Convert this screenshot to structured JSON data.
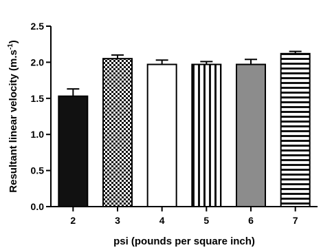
{
  "chart_data": {
    "type": "bar",
    "categories": [
      "2",
      "3",
      "4",
      "5",
      "6",
      "7"
    ],
    "values": [
      1.53,
      2.05,
      1.97,
      1.97,
      1.97,
      2.12
    ],
    "errors": [
      0.1,
      0.05,
      0.06,
      0.04,
      0.07,
      0.03
    ],
    "patterns": [
      "solid-black",
      "checkerboard",
      "white",
      "vertical-stripes",
      "gray",
      "horizontal-stripes"
    ],
    "xlabel": "psi (pounds per square inch)",
    "ylabel": "Resultant linear velocity (m.s",
    "ylabel_superscript": "-1",
    "ylabel_close": ")",
    "ylim": [
      0,
      2.5
    ],
    "yticks": [
      "0.0",
      "0.5",
      "1.0",
      "1.5",
      "2.0",
      "2.5"
    ],
    "colors": {
      "black": "#111111",
      "gray": "#8c8c8c",
      "white": "#ffffff"
    }
  }
}
